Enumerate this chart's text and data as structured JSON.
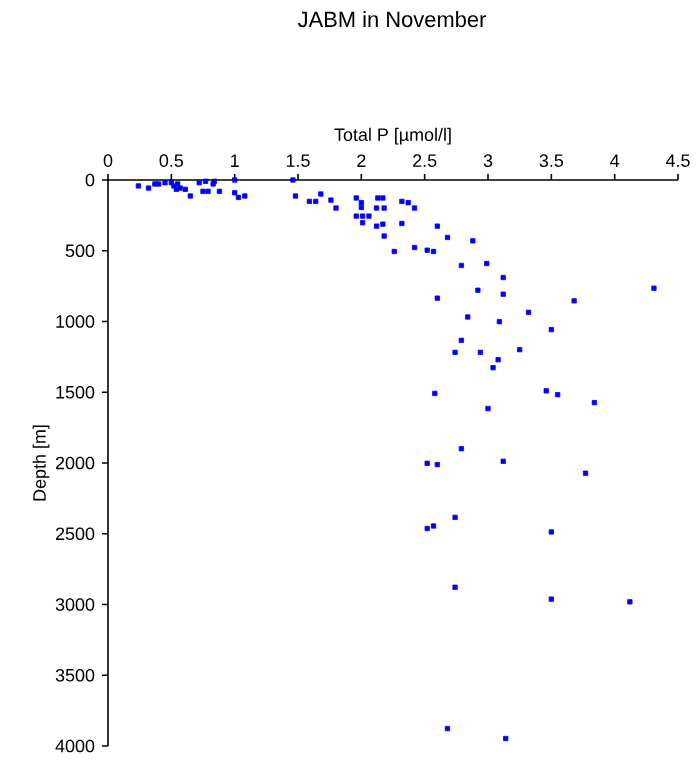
{
  "chart_data": {
    "type": "scatter",
    "title": "JABM in November",
    "xlabel": "Total P [µmol/l]",
    "ylabel": "Depth [m]",
    "x": [
      0.24,
      0.32,
      0.37,
      0.4,
      0.45,
      0.5,
      0.52,
      0.55,
      0.54,
      0.57,
      0.61,
      0.65,
      0.72,
      0.77,
      0.75,
      0.79,
      0.83,
      0.84,
      0.88,
      1.0,
      1.0,
      1.03,
      1.08,
      1.46,
      1.48,
      1.59,
      1.64,
      1.68,
      1.76,
      1.8,
      1.96,
      2.0,
      2.0,
      1.96,
      2.01,
      2.06,
      2.01,
      2.12,
      2.13,
      2.17,
      2.18,
      2.17,
      2.12,
      2.18,
      2.26,
      2.32,
      2.32,
      2.37,
      2.42,
      2.42,
      2.52,
      2.57,
      2.6,
      2.68,
      2.88,
      2.79,
      2.99,
      3.12,
      2.6,
      2.92,
      3.12,
      3.68,
      4.31,
      2.84,
      3.09,
      3.32,
      3.5,
      2.79,
      2.74,
      2.94,
      3.25,
      3.08,
      3.04,
      2.58,
      3.0,
      3.46,
      3.55,
      3.84,
      2.79,
      2.52,
      2.6,
      3.12,
      3.77,
      2.74,
      2.52,
      2.57,
      3.5,
      2.74,
      3.5,
      4.12,
      2.68,
      3.14
    ],
    "values": [
      42,
      57,
      28,
      28,
      19,
      19,
      42,
      28,
      66,
      57,
      66,
      113,
      19,
      9,
      80,
      80,
      28,
      9,
      80,
      0,
      90,
      123,
      113,
      0,
      113,
      151,
      151,
      99,
      142,
      198,
      127,
      160,
      194,
      255,
      255,
      255,
      302,
      198,
      127,
      127,
      198,
      312,
      326,
      396,
      505,
      307,
      151,
      160,
      198,
      477,
      496,
      505,
      326,
      406,
      430,
      604,
      590,
      689,
      835,
      779,
      807,
      854,
      765,
      968,
      1001,
      935,
      1057,
      1133,
      1218,
      1218,
      1199,
      1270,
      1326,
      1508,
      1615,
      1490,
      1517,
      1573,
      1899,
      2002,
      2011,
      1988,
      2072,
      2384,
      2463,
      2445,
      2487,
      2878,
      2962,
      2981,
      3877,
      3947
    ],
    "color": "#0000ff",
    "marker": "square",
    "xlim": [
      0,
      4.5
    ],
    "xticks": [
      0,
      {
        "value": 0.5,
        "label": "0.5"
      },
      1,
      {
        "value": 1.5,
        "label": "1.5"
      },
      2,
      {
        "value": 2.5,
        "label": "2.5"
      },
      3,
      {
        "value": 3.5,
        "label": "3.5"
      },
      4,
      {
        "value": 4.5,
        "label": "4.5"
      }
    ],
    "ylim": [
      4000,
      0
    ],
    "yticks": [
      0,
      500,
      1000,
      1500,
      2000,
      2500,
      3000,
      3500,
      4000
    ]
  }
}
